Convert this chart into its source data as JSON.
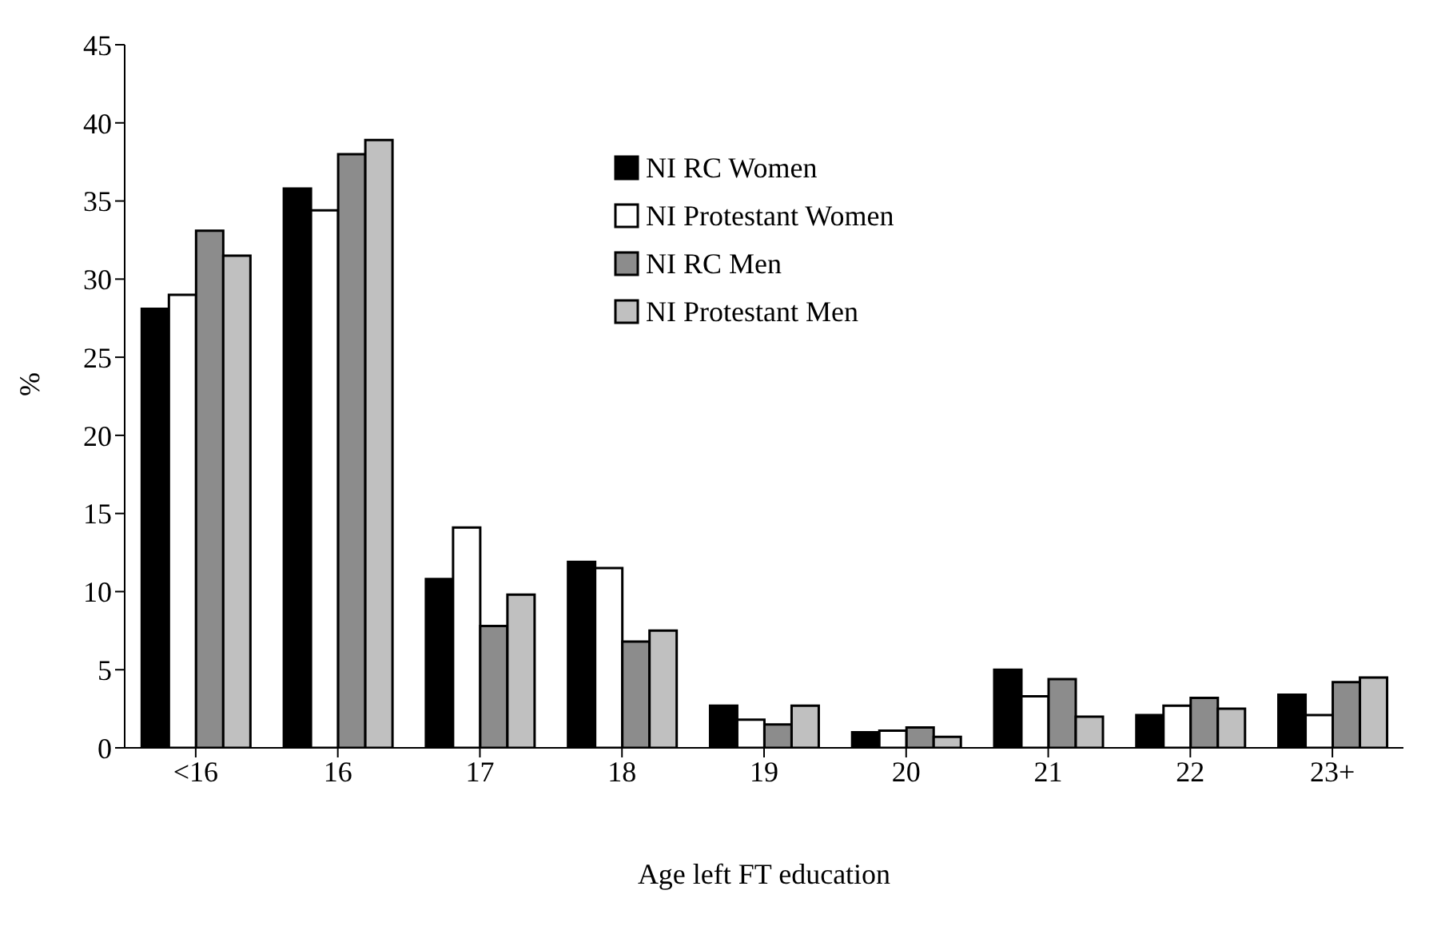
{
  "chart_data": {
    "type": "bar",
    "xlabel": "Age left FT education",
    "ylabel": "%",
    "categories": [
      "<16",
      "16",
      "17",
      "18",
      "19",
      "20",
      "21",
      "22",
      "23+"
    ],
    "series": [
      {
        "name": "NI RC Women",
        "color": "#000000",
        "values": [
          28.1,
          35.8,
          10.8,
          11.9,
          2.7,
          1.0,
          5.0,
          2.1,
          3.4
        ]
      },
      {
        "name": "NI Protestant Women",
        "color": "#ffffff",
        "values": [
          29.0,
          34.4,
          14.1,
          11.5,
          1.8,
          1.1,
          3.3,
          2.7,
          2.1
        ]
      },
      {
        "name": "NI RC Men",
        "color": "#8c8c8c",
        "values": [
          33.1,
          38.0,
          7.8,
          6.8,
          1.5,
          1.3,
          4.4,
          3.2,
          4.2
        ]
      },
      {
        "name": "NI Protestant Men",
        "color": "#c0c0c0",
        "values": [
          31.5,
          38.9,
          9.8,
          7.5,
          2.7,
          0.7,
          2.0,
          2.5,
          4.5
        ]
      }
    ],
    "ylim": [
      0,
      45
    ],
    "yticks": [
      0,
      5,
      10,
      15,
      20,
      25,
      30,
      35,
      40,
      45
    ],
    "grid": false,
    "legend": "top"
  }
}
